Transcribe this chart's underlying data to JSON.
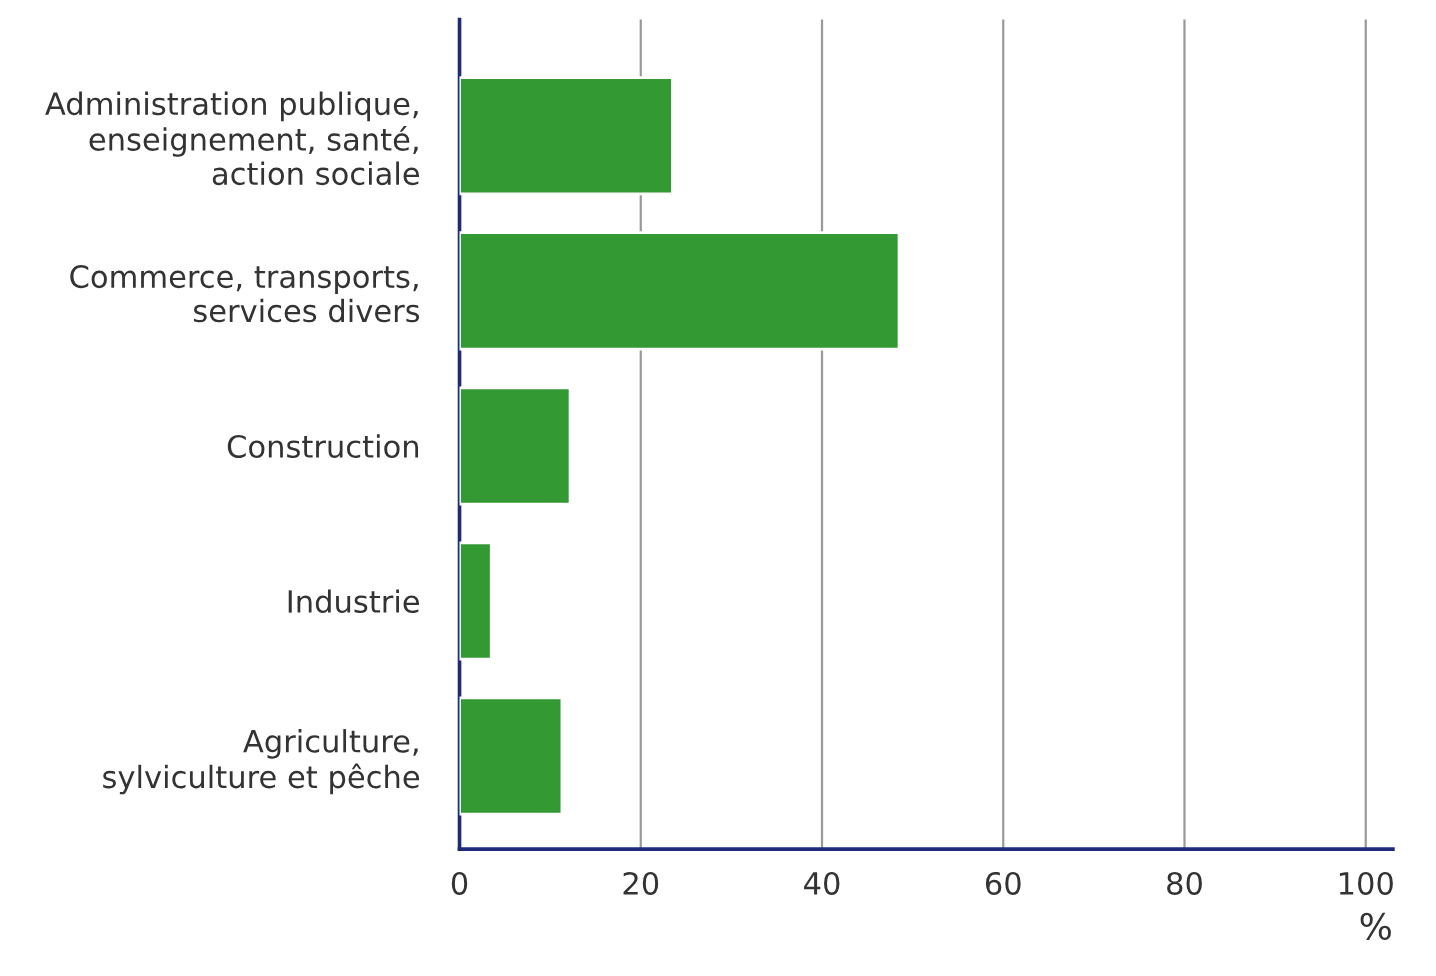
{
  "chart_data": {
    "type": "bar",
    "orientation": "horizontal",
    "xlabel": "%",
    "categories": [
      "Administration publique,\nenseignement, santé,\naction sociale",
      "Commerce, transports,\nservices divers",
      "Construction",
      "Industrie",
      "Agriculture,\nsylviculture et pêche"
    ],
    "values": [
      23.5,
      48.5,
      12.2,
      3.5,
      11.3
    ],
    "color": "#339933",
    "xlim": [
      0,
      103
    ],
    "xticks": [
      0,
      20,
      40,
      60,
      80,
      100
    ],
    "grid": "x",
    "legend": false
  }
}
